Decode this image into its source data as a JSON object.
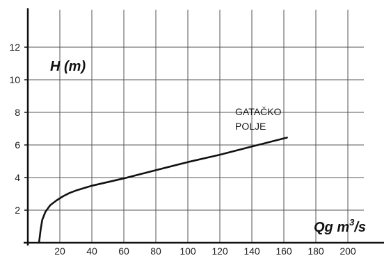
{
  "chart_data": {
    "type": "line",
    "title": "",
    "xlabel": "Qg m",
    "xlabel_sup": "3",
    "xlabel_suffix": "/s",
    "ylabel": "H (m)",
    "xlim": [
      0,
      210
    ],
    "ylim": [
      0,
      14
    ],
    "grid": true,
    "x_ticks": [
      "20",
      "40",
      "60",
      "80",
      "100",
      "120",
      "140",
      "160",
      "180",
      "200"
    ],
    "y_ticks": [
      "2",
      "4",
      "6",
      "8",
      "10",
      "12"
    ],
    "annotation": [
      "GATAČKO",
      "POLJE"
    ],
    "series": [
      {
        "x": [
          7,
          8,
          9,
          11,
          14,
          18,
          22,
          26,
          30,
          40,
          60,
          80,
          100,
          120,
          140,
          162
        ],
        "y": [
          0,
          0.8,
          1.4,
          1.9,
          2.3,
          2.6,
          2.85,
          3.05,
          3.2,
          3.5,
          3.95,
          4.45,
          4.95,
          5.4,
          5.9,
          6.45
        ]
      }
    ]
  }
}
